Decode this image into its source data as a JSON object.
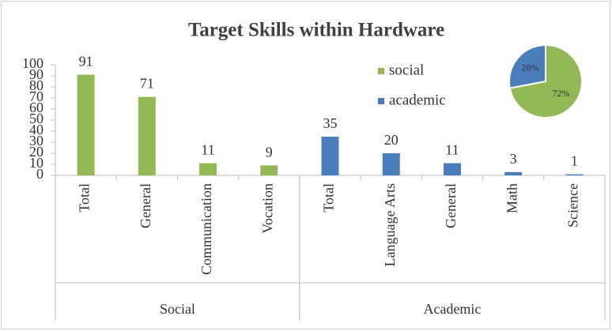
{
  "chart_data": [
    {
      "type": "bar",
      "title": "Target Skills within Hardware",
      "categories": [
        "Total",
        "General",
        "Communication",
        "Vocation",
        "Total",
        "Language Arts",
        "General",
        "Math",
        "Science"
      ],
      "group_labels": [
        "Social",
        "Academic"
      ],
      "series": [
        {
          "name": "social",
          "color": "#92b955",
          "values": [
            91,
            71,
            11,
            9,
            null,
            null,
            null,
            null,
            null
          ]
        },
        {
          "name": "academic",
          "color": "#4a7ebb",
          "values": [
            null,
            null,
            null,
            null,
            35,
            20,
            11,
            3,
            1
          ]
        }
      ],
      "ylim": [
        0,
        100
      ],
      "yticks": [
        0,
        10,
        20,
        30,
        40,
        50,
        60,
        70,
        80,
        90,
        100
      ]
    },
    {
      "type": "pie",
      "values": [
        72,
        28
      ],
      "value_labels": [
        "72%",
        "28%"
      ],
      "colors": [
        "#92b955",
        "#4a7ebb"
      ]
    }
  ]
}
